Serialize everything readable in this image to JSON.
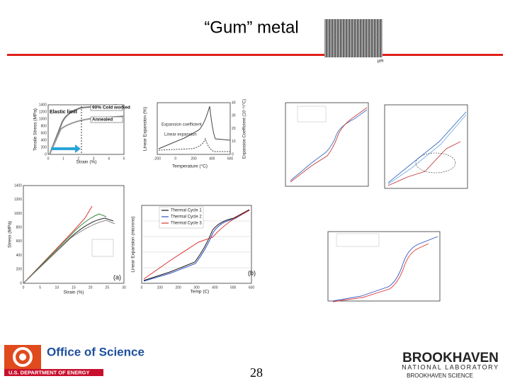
{
  "header": {
    "title": "“Gum” metal",
    "micrograph_scale": "µm"
  },
  "figures": [
    {
      "y_label": "Tensile Stress (MPa)",
      "x_label": "Strain (%)",
      "annotations": [
        "Elastic limit",
        "90% Cold worked",
        "Annealed"
      ],
      "xticks": [
        0,
        1,
        2,
        3,
        4,
        5
      ],
      "yticks": [
        0,
        200,
        400,
        600,
        800,
        1000,
        1200,
        1400
      ]
    },
    {
      "y_label": "Linear Expansion (%)",
      "x_label": "Temperature (°C)",
      "y2_label": "Expansion Coefficient (10⁻⁶/°C)",
      "annotations": [
        "Expansion coefficient",
        "Linear expansion"
      ],
      "xticks": [
        -200,
        0,
        200,
        400,
        600
      ],
      "y2ticks": [
        0,
        10,
        20,
        30,
        40
      ]
    },
    {
      "y_label": "Stress (MPa)",
      "x_label": "Strain (%)",
      "annotations": [
        "(a)"
      ],
      "xticks": [
        0,
        5,
        10,
        15,
        20,
        25,
        30
      ],
      "yticks": [
        0,
        200,
        400,
        600,
        800,
        1000,
        1200,
        1400
      ]
    },
    {
      "y_label": "Linear Expansion (microns)",
      "x_label": "Temp (C)",
      "annotations": [
        "(b)"
      ],
      "legend": [
        "Thermal Cycle 1",
        "Thermal Cycle 2",
        "Thermal Cycle 3"
      ],
      "xticks": [
        0,
        100,
        200,
        300,
        400,
        500,
        600
      ]
    }
  ],
  "footer": {
    "doe": {
      "name": "Office of Science",
      "department": "U.S. DEPARTMENT OF ENERGY"
    },
    "page_number": 28,
    "lab": {
      "name": "BROOKHAVEN",
      "subtitle": "NATIONAL LABORATORY",
      "operator": "BROOKHAVEN SCIENCE"
    }
  }
}
